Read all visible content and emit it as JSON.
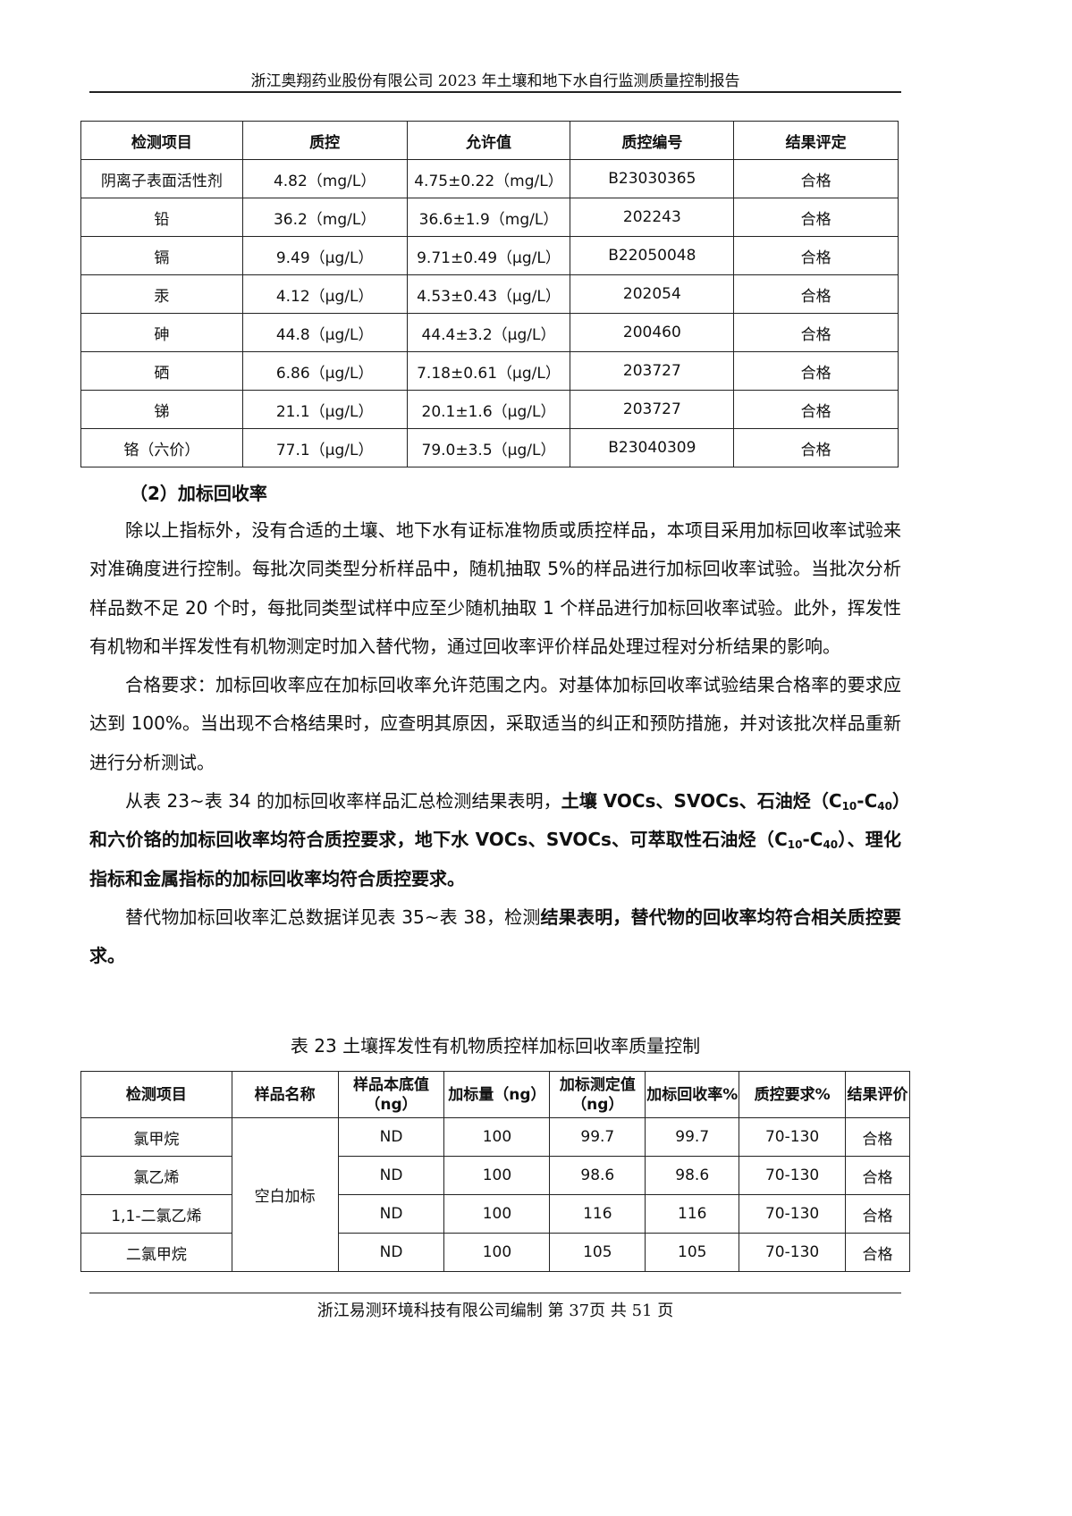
{
  "header": {
    "title": "浙江奥翔药业股份有限公司 2023 年土壤和地下水自行监测质量控制报告"
  },
  "table1": {
    "headers": [
      "检测项目",
      "质控",
      "允许值",
      "质控编号",
      "结果评定"
    ],
    "rows": [
      [
        "阴离子表面活性剂",
        "4.82（mg/L）",
        "4.75±0.22（mg/L）",
        "B23030365",
        "合格"
      ],
      [
        "铅",
        "36.2（mg/L）",
        "36.6±1.9（mg/L）",
        "202243",
        "合格"
      ],
      [
        "镉",
        "9.49（μg/L）",
        "9.71±0.49（μg/L）",
        "B22050048",
        "合格"
      ],
      [
        "汞",
        "4.12（μg/L）",
        "4.53±0.43（μg/L）",
        "202054",
        "合格"
      ],
      [
        "砷",
        "44.8（μg/L）",
        "44.4±3.2（μg/L）",
        "200460",
        "合格"
      ],
      [
        "硒",
        "6.86（μg/L）",
        "7.18±0.61（μg/L）",
        "203727",
        "合格"
      ],
      [
        "锑",
        "21.1（μg/L）",
        "20.1±1.6（μg/L）",
        "203727",
        "合格"
      ],
      [
        "铬（六价）",
        "77.1（μg/L）",
        "79.0±3.5（μg/L）",
        "B23040309",
        "合格"
      ]
    ]
  },
  "section_heading": "（2）加标回收率",
  "paragraphs": [
    [
      {
        "t": "除以上指标外，没有合适的土壤、地下水有证标准物质或质控样品，本项目采用加标回收率试验来对准确度进行控制。每批次同类型分析样品中，随机抽取 5%的样品进行加标回收率试验。当批次分析样品数不足 20 个时，每批同类型试样中应至少随机抽取 1 个样品进行加标回收率试验。此外，挥发性有机物和半挥发性有机物测定时加入替代物，通过回收率评价样品处理过程对分析结果的影响。"
      }
    ],
    [
      {
        "t": "合格要求：加标回收率应在加标回收率允许范围之内。对基体加标回收率试验结果合格率的要求应达到 100%。当出现不合格结果时，应查明其原因，采取适当的纠正和预防措施，并对该批次样品重新进行分析测试。"
      }
    ],
    [
      {
        "t": "从表 23~表 34 的加标回收率样品汇总检测结果表明，"
      },
      {
        "t": "土壤 VOCs、SVOCs、石油烃（C",
        "b": true
      },
      {
        "t": "10",
        "b": true,
        "sub": true
      },
      {
        "t": "-C",
        "b": true
      },
      {
        "t": "40",
        "b": true,
        "sub": true
      },
      {
        "t": "）和六价铬的加标回收率均符合质控要求，地下水 VOCs、SVOCs、可萃取性石油烃（C",
        "b": true
      },
      {
        "t": "10",
        "b": true,
        "sub": true
      },
      {
        "t": "-C",
        "b": true
      },
      {
        "t": "40",
        "b": true,
        "sub": true
      },
      {
        "t": "）、理化指标和金属指标的加标回收率均符合质控要求。",
        "b": true
      }
    ],
    [
      {
        "t": "替代物加标回收率汇总数据详见表 35~表 38，检测"
      },
      {
        "t": "结果表明，替代物的回收率均符合相关质控要求。",
        "b": true
      }
    ]
  ],
  "table2": {
    "caption": "表  23  土壤挥发性有机物质控样加标回收率质量控制",
    "headers": [
      "检测项目",
      "样品名称",
      "样品本底值（ng）",
      "加标量（ng）",
      "加标测定值（ng）",
      "加标回收率%",
      "质控要求%",
      "结果评价"
    ],
    "sample_name": "空白加标",
    "rows": [
      [
        "氯甲烷",
        "ND",
        "100",
        "99.7",
        "99.7",
        "70-130",
        "合格"
      ],
      [
        "氯乙烯",
        "ND",
        "100",
        "98.6",
        "98.6",
        "70-130",
        "合格"
      ],
      [
        "1,1-二氯乙烯",
        "ND",
        "100",
        "116",
        "116",
        "70-130",
        "合格"
      ],
      [
        "二氯甲烷",
        "ND",
        "100",
        "105",
        "105",
        "70-130",
        "合格"
      ]
    ]
  },
  "footer": {
    "text": "浙江易测环境科技有限公司编制    第 37页    共 51 页"
  }
}
